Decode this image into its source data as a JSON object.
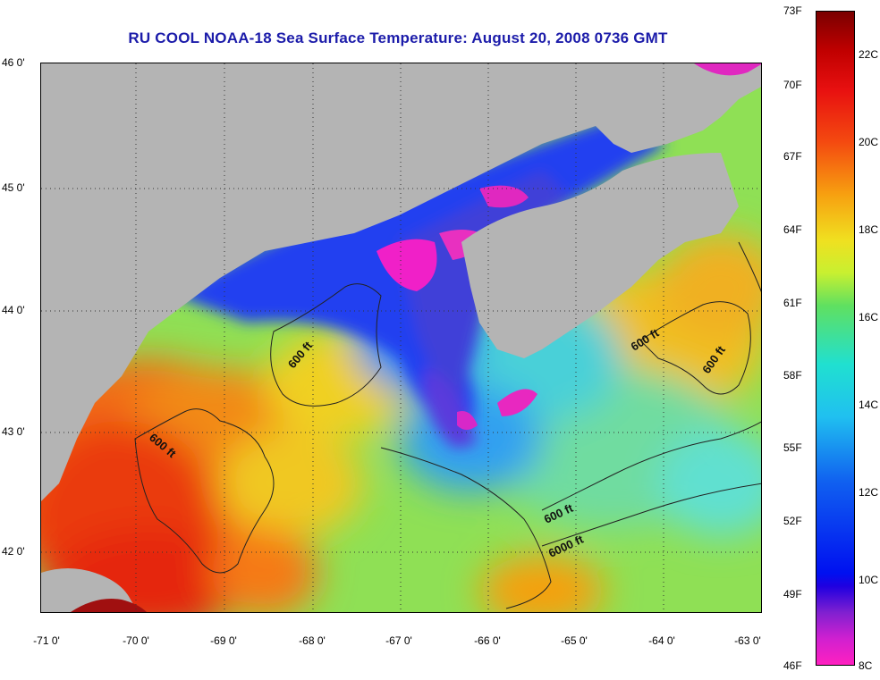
{
  "title": "RU COOL  NOAA-18  Sea Surface Temperature:  August 20, 2008 0736 GMT",
  "latitudes": [
    "46 0'",
    "45 0'",
    "44 0'",
    "43 0'",
    "42 0'"
  ],
  "longitudes": [
    "-71 0'",
    "-70 0'",
    "-69 0'",
    "-68 0'",
    "-67 0'",
    "-66 0'",
    "-65 0'",
    "-64 0'",
    "-63 0'"
  ],
  "contour_labels": [
    "600 ft",
    "600 ft",
    "600 ft",
    "600 ft",
    "600 ft",
    "6000 ft"
  ],
  "colorbar": {
    "fahrenheit": [
      "73F",
      "70F",
      "67F",
      "64F",
      "61F",
      "58F",
      "55F",
      "52F",
      "49F",
      "46F"
    ],
    "celsius": [
      "22C",
      "20C",
      "18C",
      "16C",
      "14C",
      "12C",
      "10C",
      "8C"
    ]
  },
  "colors": {
    "land": "#b4b4b4",
    "title": "#1c1caa"
  }
}
